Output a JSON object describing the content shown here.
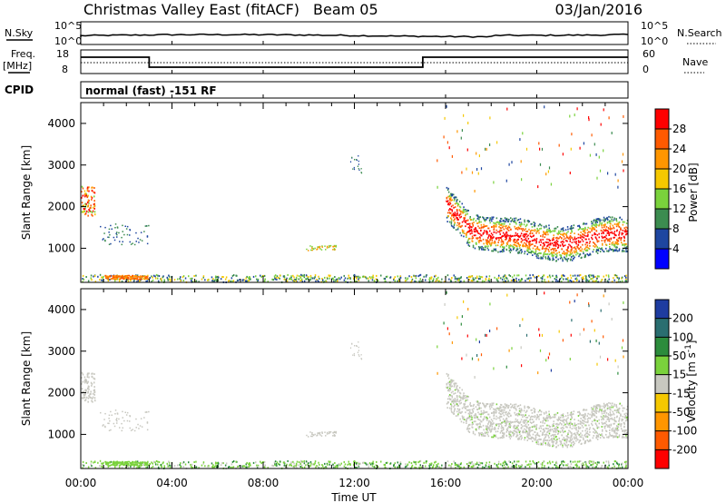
{
  "header": {
    "title": "Christmas Valley East (fitACF)",
    "beam": "Beam 05",
    "date": "03/Jan/2016"
  },
  "panels": {
    "nsky": {
      "label": "N.Sky",
      "y_top": "10^5",
      "y_bottom": "10^0",
      "right_top": "10^5",
      "right_bottom": "10^0",
      "right_label": "N.Search"
    },
    "freq": {
      "label_line1": "Freq.",
      "label_line2": "[MHz]",
      "y_top": "18",
      "y_bottom": "8",
      "right_top": "60",
      "right_bottom": "0",
      "right_label": "Nave"
    },
    "cpid": {
      "label": "CPID",
      "value": "normal (fast) -151 RF"
    }
  },
  "chart_data": [
    {
      "type": "heatmap",
      "name": "power",
      "ylabel": "Slant Range [km]",
      "yticks": [
        1000,
        2000,
        3000,
        4000
      ],
      "ylim": [
        180,
        4500
      ],
      "xlim": [
        0,
        24
      ],
      "colorbar": {
        "label": "Power [dB]",
        "ticks": [
          "28",
          "24",
          "20",
          "16",
          "12",
          "8",
          "4"
        ],
        "colors": [
          "#ff0000",
          "#ff5a00",
          "#ff9600",
          "#f5c800",
          "#7ad23c",
          "#3c8c50",
          "#1e46a0",
          "#0000ff"
        ]
      }
    },
    {
      "type": "heatmap",
      "name": "velocity",
      "ylabel": "Slant Range [km]",
      "yticks": [
        1000,
        2000,
        3000,
        4000
      ],
      "ylim": [
        180,
        4500
      ],
      "xlim": [
        0,
        24
      ],
      "xlabel": "Time UT",
      "xticks": [
        "00:00",
        "04:00",
        "08:00",
        "12:00",
        "16:00",
        "20:00",
        "00:00"
      ],
      "colorbar": {
        "label": "Velocity [m s^-1]",
        "ticks": [
          "200",
          "100",
          "50",
          "15",
          "-15",
          "-50",
          "-100",
          "-200"
        ],
        "colors": [
          "#1e3ca0",
          "#2a6e70",
          "#2c8c3c",
          "#7ad23c",
          "#c8c8c0",
          "#f5c800",
          "#ff9600",
          "#ff5a00",
          "#ff0000"
        ]
      }
    }
  ]
}
